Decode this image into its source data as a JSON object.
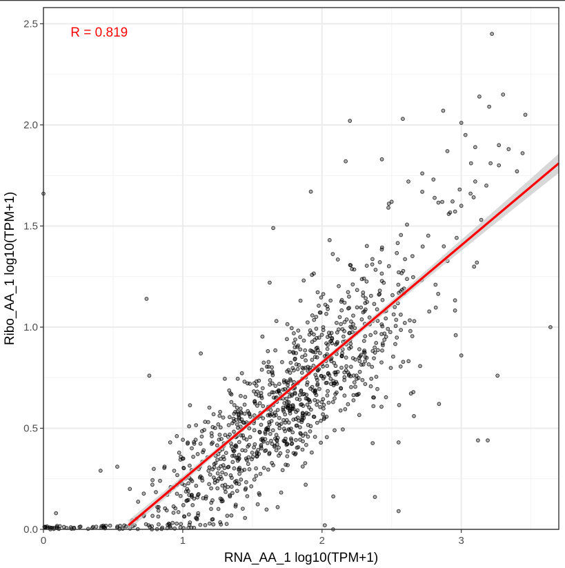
{
  "chart_data": {
    "type": "scatter",
    "title": "",
    "xlabel": "RNA_AA_1 log10(TPM+1)",
    "ylabel": "Ribo_AA_1 log10(TPM+1)",
    "xlim": [
      0,
      3.7
    ],
    "ylim": [
      0,
      2.58
    ],
    "x_ticks": [
      "0",
      "1",
      "2",
      "3"
    ],
    "y_ticks": [
      "0.0",
      "0.5",
      "1.0",
      "1.5",
      "2.0",
      "2.5"
    ],
    "grid": true,
    "legend": "none",
    "annotation": {
      "text": "R = 0.819",
      "color": "#ff0000",
      "x": 0.4,
      "y": 2.46
    },
    "fit_line": {
      "color": "#ff0000",
      "x_start": 0.61,
      "y_start": 0.02,
      "x_end": 3.7,
      "y_end": 1.81,
      "ci_color": "#c8c8c8"
    },
    "point_color": "#000000",
    "points": [
      [
        0.0,
        1.66
      ],
      [
        0.74,
        1.14
      ],
      [
        0.76,
        0.76
      ],
      [
        1.13,
        0.87
      ],
      [
        1.65,
        1.49
      ],
      [
        1.92,
        1.67
      ],
      [
        2.2,
        2.02
      ],
      [
        2.17,
        1.82
      ],
      [
        2.43,
        1.83
      ],
      [
        2.58,
        2.03
      ],
      [
        2.87,
        2.07
      ],
      [
        3.0,
        2.01
      ],
      [
        3.13,
        2.14
      ],
      [
        3.2,
        2.09
      ],
      [
        3.22,
        2.45
      ],
      [
        3.3,
        2.15
      ],
      [
        3.46,
        2.05
      ],
      [
        3.27,
        1.9
      ],
      [
        3.34,
        1.88
      ],
      [
        3.44,
        1.86
      ],
      [
        3.1,
        1.89
      ],
      [
        3.03,
        1.95
      ],
      [
        2.9,
        1.87
      ],
      [
        3.07,
        1.81
      ],
      [
        3.21,
        1.81
      ],
      [
        3.27,
        1.8
      ],
      [
        3.4,
        1.77
      ],
      [
        3.1,
        1.72
      ],
      [
        3.18,
        1.7
      ],
      [
        3.64,
        1.0
      ],
      [
        3.12,
        0.44
      ],
      [
        3.19,
        0.44
      ],
      [
        3.26,
        0.76
      ],
      [
        2.84,
        0.62
      ],
      [
        2.55,
        0.43
      ],
      [
        2.55,
        0.09
      ],
      [
        2.38,
        0.16
      ],
      [
        2.02,
        0.02
      ],
      [
        2.08,
        0.0
      ],
      [
        0.09,
        0.08
      ],
      [
        0.41,
        0.29
      ],
      [
        0.53,
        0.31
      ],
      [
        0.62,
        0.2
      ],
      [
        0.87,
        0.31
      ],
      [
        0.91,
        0.43
      ],
      [
        2.16,
        0.98
      ],
      [
        2.96,
        0.96
      ],
      [
        3.0,
        0.86
      ],
      [
        2.66,
        0.56
      ],
      [
        3.0,
        1.6
      ],
      [
        2.62,
        1.72
      ],
      [
        2.72,
        1.76
      ],
      [
        2.8,
        1.73
      ],
      [
        2.48,
        1.61
      ],
      [
        2.5,
        1.62
      ]
    ],
    "cloud": {
      "seed": 20240611,
      "count": 1050,
      "slope": 0.6,
      "intercept": -0.42,
      "x_mean": 1.75,
      "x_sd": 0.52,
      "y_sd": 0.17
    }
  }
}
